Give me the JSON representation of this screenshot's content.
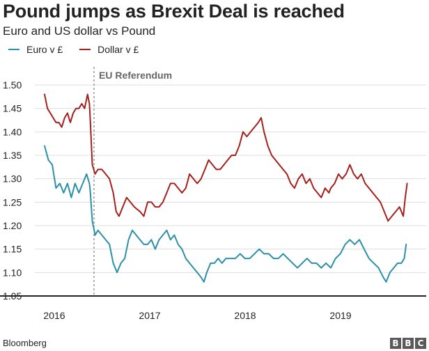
{
  "title": "Pound jumps as Brexit Deal is reached",
  "subtitle": "Euro and US dollar vs Pound",
  "source": "Bloomberg",
  "logo_letters": [
    "B",
    "B",
    "C"
  ],
  "colors": {
    "euro": "#2a8fa8",
    "dollar": "#a5201b",
    "grid": "#dddddd",
    "axis": "#222222",
    "annotation": "#666666",
    "text": "#222222"
  },
  "chart_data": {
    "type": "line",
    "title": "Pound jumps as Brexit Deal is reached",
    "subtitle": "Euro and US dollar vs Pound",
    "xlabel": "",
    "ylabel": "",
    "xlim": [
      2016.0,
      2019.85
    ],
    "ylim": [
      1.05,
      1.5
    ],
    "yticks": [
      1.05,
      1.1,
      1.15,
      1.2,
      1.25,
      1.3,
      1.35,
      1.4,
      1.45,
      1.5
    ],
    "ytick_labels": [
      "1.05",
      "1.10",
      "1.15",
      "1.20",
      "1.25",
      "1.30",
      "1.35",
      "1.40",
      "1.45",
      "1.50"
    ],
    "xticks": [
      2016,
      2017,
      2018,
      2019
    ],
    "xtick_labels": [
      "2016",
      "2017",
      "2018",
      "2019"
    ],
    "grid": true,
    "legend": "top-left",
    "annotations": [
      {
        "x": 2016.48,
        "label": "EU Referendum",
        "style": "dashed-vertical"
      }
    ],
    "series": [
      {
        "name": "Euro v £",
        "key": "euro",
        "points": [
          [
            2016.0,
            1.37
          ],
          [
            2016.04,
            1.34
          ],
          [
            2016.08,
            1.33
          ],
          [
            2016.12,
            1.28
          ],
          [
            2016.16,
            1.29
          ],
          [
            2016.2,
            1.27
          ],
          [
            2016.24,
            1.29
          ],
          [
            2016.28,
            1.26
          ],
          [
            2016.32,
            1.29
          ],
          [
            2016.36,
            1.27
          ],
          [
            2016.4,
            1.29
          ],
          [
            2016.44,
            1.31
          ],
          [
            2016.47,
            1.29
          ],
          [
            2016.48,
            1.27
          ],
          [
            2016.5,
            1.21
          ],
          [
            2016.53,
            1.18
          ],
          [
            2016.56,
            1.19
          ],
          [
            2016.6,
            1.18
          ],
          [
            2016.64,
            1.17
          ],
          [
            2016.68,
            1.16
          ],
          [
            2016.72,
            1.12
          ],
          [
            2016.76,
            1.1
          ],
          [
            2016.8,
            1.12
          ],
          [
            2016.84,
            1.13
          ],
          [
            2016.88,
            1.17
          ],
          [
            2016.92,
            1.19
          ],
          [
            2016.96,
            1.18
          ],
          [
            2017.0,
            1.17
          ],
          [
            2017.04,
            1.16
          ],
          [
            2017.08,
            1.16
          ],
          [
            2017.12,
            1.17
          ],
          [
            2017.16,
            1.15
          ],
          [
            2017.2,
            1.17
          ],
          [
            2017.24,
            1.18
          ],
          [
            2017.28,
            1.19
          ],
          [
            2017.32,
            1.17
          ],
          [
            2017.36,
            1.18
          ],
          [
            2017.4,
            1.16
          ],
          [
            2017.44,
            1.15
          ],
          [
            2017.48,
            1.13
          ],
          [
            2017.52,
            1.12
          ],
          [
            2017.56,
            1.11
          ],
          [
            2017.6,
            1.1
          ],
          [
            2017.64,
            1.09
          ],
          [
            2017.67,
            1.08
          ],
          [
            2017.7,
            1.1
          ],
          [
            2017.74,
            1.12
          ],
          [
            2017.78,
            1.12
          ],
          [
            2017.82,
            1.13
          ],
          [
            2017.86,
            1.12
          ],
          [
            2017.9,
            1.13
          ],
          [
            2017.94,
            1.13
          ],
          [
            2018.0,
            1.13
          ],
          [
            2018.05,
            1.14
          ],
          [
            2018.1,
            1.13
          ],
          [
            2018.15,
            1.13
          ],
          [
            2018.2,
            1.14
          ],
          [
            2018.25,
            1.15
          ],
          [
            2018.3,
            1.14
          ],
          [
            2018.35,
            1.14
          ],
          [
            2018.4,
            1.13
          ],
          [
            2018.45,
            1.13
          ],
          [
            2018.5,
            1.14
          ],
          [
            2018.55,
            1.13
          ],
          [
            2018.6,
            1.12
          ],
          [
            2018.65,
            1.11
          ],
          [
            2018.7,
            1.12
          ],
          [
            2018.75,
            1.13
          ],
          [
            2018.8,
            1.12
          ],
          [
            2018.85,
            1.12
          ],
          [
            2018.9,
            1.11
          ],
          [
            2018.95,
            1.12
          ],
          [
            2019.0,
            1.11
          ],
          [
            2019.05,
            1.13
          ],
          [
            2019.1,
            1.14
          ],
          [
            2019.15,
            1.16
          ],
          [
            2019.2,
            1.17
          ],
          [
            2019.25,
            1.16
          ],
          [
            2019.3,
            1.17
          ],
          [
            2019.35,
            1.15
          ],
          [
            2019.4,
            1.13
          ],
          [
            2019.45,
            1.12
          ],
          [
            2019.5,
            1.11
          ],
          [
            2019.55,
            1.09
          ],
          [
            2019.58,
            1.08
          ],
          [
            2019.62,
            1.1
          ],
          [
            2019.66,
            1.11
          ],
          [
            2019.7,
            1.12
          ],
          [
            2019.74,
            1.12
          ],
          [
            2019.77,
            1.13
          ],
          [
            2019.79,
            1.16
          ]
        ]
      },
      {
        "name": "Dollar v £",
        "key": "dollar",
        "points": [
          [
            2016.0,
            1.48
          ],
          [
            2016.03,
            1.45
          ],
          [
            2016.06,
            1.44
          ],
          [
            2016.09,
            1.43
          ],
          [
            2016.12,
            1.42
          ],
          [
            2016.15,
            1.42
          ],
          [
            2016.18,
            1.41
          ],
          [
            2016.21,
            1.43
          ],
          [
            2016.24,
            1.44
          ],
          [
            2016.27,
            1.42
          ],
          [
            2016.3,
            1.44
          ],
          [
            2016.33,
            1.45
          ],
          [
            2016.36,
            1.45
          ],
          [
            2016.39,
            1.46
          ],
          [
            2016.42,
            1.45
          ],
          [
            2016.45,
            1.48
          ],
          [
            2016.47,
            1.46
          ],
          [
            2016.48,
            1.42
          ],
          [
            2016.5,
            1.33
          ],
          [
            2016.53,
            1.31
          ],
          [
            2016.56,
            1.32
          ],
          [
            2016.6,
            1.32
          ],
          [
            2016.64,
            1.31
          ],
          [
            2016.68,
            1.3
          ],
          [
            2016.72,
            1.27
          ],
          [
            2016.75,
            1.23
          ],
          [
            2016.78,
            1.22
          ],
          [
            2016.82,
            1.24
          ],
          [
            2016.86,
            1.26
          ],
          [
            2016.9,
            1.25
          ],
          [
            2016.94,
            1.24
          ],
          [
            2017.0,
            1.23
          ],
          [
            2017.04,
            1.22
          ],
          [
            2017.08,
            1.25
          ],
          [
            2017.12,
            1.25
          ],
          [
            2017.16,
            1.24
          ],
          [
            2017.2,
            1.24
          ],
          [
            2017.24,
            1.25
          ],
          [
            2017.28,
            1.27
          ],
          [
            2017.32,
            1.29
          ],
          [
            2017.36,
            1.29
          ],
          [
            2017.4,
            1.28
          ],
          [
            2017.44,
            1.27
          ],
          [
            2017.48,
            1.28
          ],
          [
            2017.52,
            1.31
          ],
          [
            2017.56,
            1.3
          ],
          [
            2017.6,
            1.29
          ],
          [
            2017.64,
            1.3
          ],
          [
            2017.68,
            1.32
          ],
          [
            2017.72,
            1.34
          ],
          [
            2017.76,
            1.33
          ],
          [
            2017.8,
            1.32
          ],
          [
            2017.84,
            1.32
          ],
          [
            2017.88,
            1.33
          ],
          [
            2017.92,
            1.34
          ],
          [
            2017.96,
            1.35
          ],
          [
            2018.0,
            1.35
          ],
          [
            2018.04,
            1.37
          ],
          [
            2018.08,
            1.4
          ],
          [
            2018.12,
            1.39
          ],
          [
            2018.16,
            1.4
          ],
          [
            2018.2,
            1.41
          ],
          [
            2018.24,
            1.42
          ],
          [
            2018.27,
            1.43
          ],
          [
            2018.3,
            1.4
          ],
          [
            2018.34,
            1.37
          ],
          [
            2018.38,
            1.35
          ],
          [
            2018.42,
            1.34
          ],
          [
            2018.46,
            1.33
          ],
          [
            2018.5,
            1.32
          ],
          [
            2018.54,
            1.31
          ],
          [
            2018.58,
            1.29
          ],
          [
            2018.62,
            1.28
          ],
          [
            2018.66,
            1.3
          ],
          [
            2018.7,
            1.31
          ],
          [
            2018.74,
            1.29
          ],
          [
            2018.78,
            1.3
          ],
          [
            2018.82,
            1.28
          ],
          [
            2018.86,
            1.27
          ],
          [
            2018.9,
            1.26
          ],
          [
            2018.94,
            1.28
          ],
          [
            2018.98,
            1.27
          ],
          [
            2019.0,
            1.28
          ],
          [
            2019.04,
            1.29
          ],
          [
            2019.08,
            1.31
          ],
          [
            2019.12,
            1.3
          ],
          [
            2019.16,
            1.31
          ],
          [
            2019.2,
            1.33
          ],
          [
            2019.24,
            1.31
          ],
          [
            2019.28,
            1.3
          ],
          [
            2019.32,
            1.31
          ],
          [
            2019.36,
            1.29
          ],
          [
            2019.4,
            1.28
          ],
          [
            2019.44,
            1.27
          ],
          [
            2019.48,
            1.26
          ],
          [
            2019.52,
            1.25
          ],
          [
            2019.56,
            1.23
          ],
          [
            2019.6,
            1.21
          ],
          [
            2019.64,
            1.22
          ],
          [
            2019.68,
            1.23
          ],
          [
            2019.72,
            1.24
          ],
          [
            2019.76,
            1.22
          ],
          [
            2019.78,
            1.26
          ],
          [
            2019.8,
            1.29
          ]
        ]
      }
    ]
  }
}
